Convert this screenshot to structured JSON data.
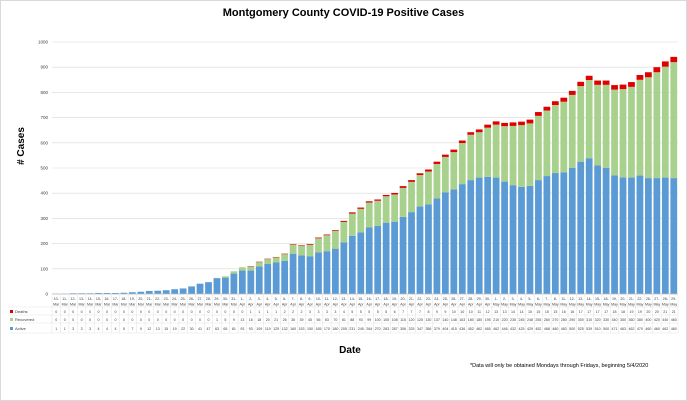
{
  "chart_data": {
    "type": "bar",
    "stacked": true,
    "title": "Montgomery County COVID-19 Positive Cases",
    "xlabel": "Date",
    "ylabel": "# Cases",
    "ylim": [
      0,
      1000
    ],
    "yticks": [
      0,
      100,
      200,
      300,
      400,
      500,
      600,
      700,
      800,
      900,
      1000
    ],
    "grid": true,
    "legend_placement": "left of data table",
    "footnote": "*Data will only be obtained Mondays through Fridays, beginning 5/4/2020",
    "categories": [
      {
        "d": "10-",
        "m": "Mar"
      },
      {
        "d": "11-",
        "m": "Mar"
      },
      {
        "d": "12-",
        "m": "Mar"
      },
      {
        "d": "13-",
        "m": "Mar"
      },
      {
        "d": "14-",
        "m": "Mar"
      },
      {
        "d": "15-",
        "m": "Mar"
      },
      {
        "d": "16-",
        "m": "Mar"
      },
      {
        "d": "17-",
        "m": "Mar"
      },
      {
        "d": "18-",
        "m": "Mar"
      },
      {
        "d": "19-",
        "m": "Mar"
      },
      {
        "d": "20-",
        "m": "Mar"
      },
      {
        "d": "21-",
        "m": "Mar"
      },
      {
        "d": "22-",
        "m": "Mar"
      },
      {
        "d": "23-",
        "m": "Mar"
      },
      {
        "d": "24-",
        "m": "Mar"
      },
      {
        "d": "25-",
        "m": "Mar"
      },
      {
        "d": "26-",
        "m": "Mar"
      },
      {
        "d": "27-",
        "m": "Mar"
      },
      {
        "d": "28-",
        "m": "Mar"
      },
      {
        "d": "29-",
        "m": "Mar"
      },
      {
        "d": "30-",
        "m": "Mar"
      },
      {
        "d": "31-",
        "m": "Mar"
      },
      {
        "d": "1-",
        "m": "Apr"
      },
      {
        "d": "2-",
        "m": "Apr"
      },
      {
        "d": "3-",
        "m": "Apr"
      },
      {
        "d": "4-",
        "m": "Apr"
      },
      {
        "d": "5-",
        "m": "Apr"
      },
      {
        "d": "6-",
        "m": "Apr"
      },
      {
        "d": "7-",
        "m": "Apr"
      },
      {
        "d": "8-",
        "m": "Apr"
      },
      {
        "d": "9-",
        "m": "Apr"
      },
      {
        "d": "10-",
        "m": "Apr"
      },
      {
        "d": "11-",
        "m": "Apr"
      },
      {
        "d": "12-",
        "m": "Apr"
      },
      {
        "d": "13-",
        "m": "Apr"
      },
      {
        "d": "14-",
        "m": "Apr"
      },
      {
        "d": "15-",
        "m": "Apr"
      },
      {
        "d": "16-",
        "m": "Apr"
      },
      {
        "d": "17-",
        "m": "Apr"
      },
      {
        "d": "18-",
        "m": "Apr"
      },
      {
        "d": "19-",
        "m": "Apr"
      },
      {
        "d": "20-",
        "m": "Apr"
      },
      {
        "d": "21-",
        "m": "Apr"
      },
      {
        "d": "22-",
        "m": "Apr"
      },
      {
        "d": "23-",
        "m": "Apr"
      },
      {
        "d": "24-",
        "m": "Apr"
      },
      {
        "d": "25-",
        "m": "Apr"
      },
      {
        "d": "26-",
        "m": "Apr"
      },
      {
        "d": "27-",
        "m": "Apr"
      },
      {
        "d": "28-",
        "m": "Apr"
      },
      {
        "d": "29-",
        "m": "Apr"
      },
      {
        "d": "30-",
        "m": "Apr"
      },
      {
        "d": "1-",
        "m": "May"
      },
      {
        "d": "2-",
        "m": "May"
      },
      {
        "d": "3-",
        "m": "May"
      },
      {
        "d": "4-",
        "m": "May"
      },
      {
        "d": "5-",
        "m": "May"
      },
      {
        "d": "6-",
        "m": "May"
      },
      {
        "d": "7-",
        "m": "May"
      },
      {
        "d": "8-",
        "m": "May"
      },
      {
        "d": "11-",
        "m": "May"
      },
      {
        "d": "12-",
        "m": "May"
      },
      {
        "d": "13-",
        "m": "May"
      },
      {
        "d": "14-",
        "m": "May"
      },
      {
        "d": "15-",
        "m": "May"
      },
      {
        "d": "18-",
        "m": "May"
      },
      {
        "d": "19-",
        "m": "May"
      },
      {
        "d": "20-",
        "m": "May"
      },
      {
        "d": "21-",
        "m": "May"
      },
      {
        "d": "22-",
        "m": "May"
      },
      {
        "d": "26-",
        "m": "May"
      },
      {
        "d": "27-",
        "m": "May"
      },
      {
        "d": "28-",
        "m": "May"
      },
      {
        "d": "29-",
        "m": "May"
      }
    ],
    "series": [
      {
        "name": "Deaths",
        "color": "#e00000",
        "values": [
          0,
          0,
          0,
          0,
          0,
          0,
          0,
          0,
          0,
          0,
          0,
          0,
          0,
          0,
          0,
          0,
          0,
          0,
          0,
          0,
          0,
          0,
          0,
          1,
          1,
          1,
          1,
          2,
          2,
          2,
          3,
          3,
          3,
          3,
          4,
          5,
          5,
          5,
          5,
          5,
          6,
          7,
          7,
          7,
          8,
          9,
          9,
          10,
          10,
          10,
          11,
          12,
          13,
          13,
          14,
          14,
          15,
          15,
          15,
          15,
          16,
          16,
          17,
          17,
          17,
          17,
          18,
          18,
          19,
          19,
          20,
          20,
          21,
          21
        ]
      },
      {
        "name": "Recovered",
        "color": "#a9d18e",
        "values": [
          0,
          0,
          0,
          0,
          0,
          0,
          0,
          0,
          0,
          0,
          0,
          0,
          0,
          0,
          0,
          0,
          0,
          0,
          0,
          1,
          5,
          9,
          13,
          16,
          18,
          20,
          21,
          26,
          36,
          39,
          45,
          56,
          63,
          70,
          81,
          88,
          93,
          99,
          100,
          105,
          108,
          115,
          120,
          125,
          130,
          137,
          140,
          148,
          163,
          180,
          180,
          195,
          210,
          220,
          235,
          245,
          248,
          255,
          260,
          270,
          280,
          290,
          300,
          310,
          320,
          330,
          340,
          350,
          360,
          380,
          400,
          420,
          440,
          460
        ]
      },
      {
        "name": "Active",
        "color": "#5b9bd5",
        "values": [
          1,
          1,
          3,
          3,
          3,
          4,
          4,
          4,
          5,
          7,
          9,
          12,
          13,
          15,
          19,
          22,
          30,
          41,
          47,
          63,
          65,
          81,
          93,
          93,
          109,
          119,
          125,
          132,
          160,
          153,
          150,
          165,
          170,
          180,
          205,
          231,
          245,
          264,
          270,
          283,
          287,
          306,
          325,
          347,
          356,
          379,
          404,
          415,
          436,
          452,
          462,
          465,
          462,
          446,
          432,
          425,
          429,
          452,
          468,
          480,
          483,
          500,
          525,
          539,
          510,
          500,
          471,
          463,
          462,
          470,
          460,
          460,
          462,
          460
        ]
      }
    ]
  }
}
